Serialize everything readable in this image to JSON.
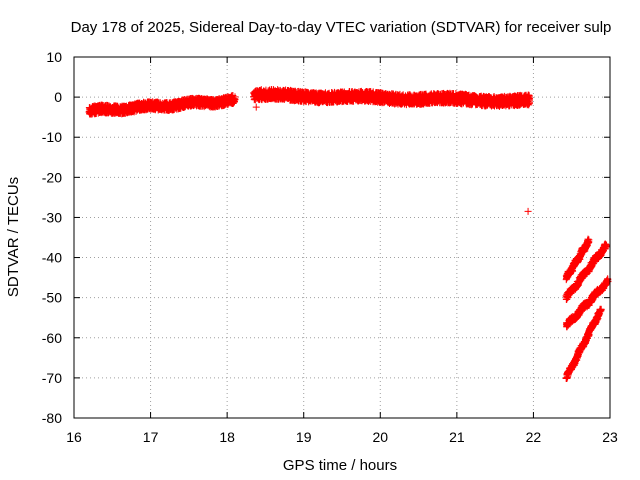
{
  "chart_data": {
    "type": "scatter",
    "title": "Day 178 of 2025, Sidereal Day-to-day VTEC variation (SDTVAR) for receiver sulp",
    "xlabel": "GPS time / hours",
    "ylabel": "SDTVAR / TECUs",
    "xlim": [
      16,
      23
    ],
    "ylim": [
      -80,
      10
    ],
    "xticks": [
      16,
      17,
      18,
      19,
      20,
      21,
      22,
      23
    ],
    "yticks": [
      10,
      0,
      -10,
      -20,
      -30,
      -40,
      -50,
      -60,
      -70,
      -80
    ],
    "grid": true,
    "marker": "+",
    "color": "#ff0000",
    "series": [
      {
        "name": "SDTVAR",
        "segments": [
          {
            "x0": 16.2,
            "x1": 18.1,
            "y0": -3.5,
            "y1": -0.8,
            "spread": 2.0
          },
          {
            "x0": 18.35,
            "x1": 21.95,
            "y0": 0.5,
            "y1": -1.0,
            "spread": 2.5
          },
          {
            "x0": 22.43,
            "x1": 22.72,
            "y0": -45,
            "y1": -36,
            "spread": 1.2
          },
          {
            "x0": 22.43,
            "x1": 22.95,
            "y0": -50,
            "y1": -37,
            "spread": 1.2
          },
          {
            "x0": 22.43,
            "x1": 22.97,
            "y0": -57,
            "y1": -46,
            "spread": 1.2
          },
          {
            "x0": 22.43,
            "x1": 22.88,
            "y0": -70,
            "y1": -53,
            "spread": 1.0
          }
        ],
        "points": [
          {
            "x": 21.93,
            "y": -28.5
          },
          {
            "x": 18.38,
            "y": -2.5
          }
        ]
      }
    ]
  }
}
